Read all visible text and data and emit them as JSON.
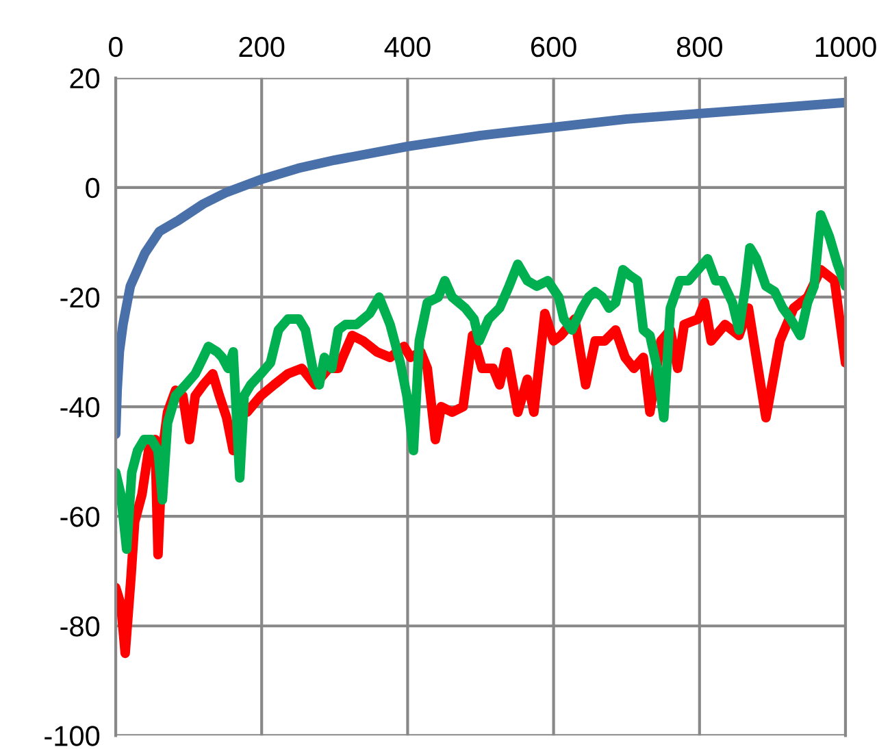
{
  "chart_data": {
    "type": "line",
    "xlim": [
      0,
      1000
    ],
    "xticks": [
      0,
      200,
      400,
      600,
      800,
      1000
    ],
    "ylim": [
      -100,
      20
    ],
    "yticks": [
      -100,
      -80,
      -60,
      -40,
      -20,
      0,
      20
    ],
    "grid": true,
    "marker": "none",
    "line_style": "solid",
    "series": [
      {
        "color": "#4a70aa",
        "x": [
          0,
          2,
          5,
          10,
          20,
          40,
          60,
          86,
          120,
          150,
          200,
          250,
          300,
          400,
          500,
          600,
          700,
          800,
          900,
          1000
        ],
        "values": [
          -45,
          -37,
          -30,
          -25,
          -18,
          -12,
          -8,
          -6,
          -3,
          -1,
          1.5,
          3.5,
          5,
          7.5,
          9.5,
          11,
          12.5,
          13.5,
          14.5,
          15.5
        ]
      },
      {
        "color": "#ff0000",
        "x": [
          0,
          7,
          13,
          21,
          26,
          36,
          45,
          54,
          58,
          64,
          71,
          82,
          92,
          101,
          109,
          120,
          133,
          142,
          152,
          161,
          167,
          180,
          199,
          217,
          236,
          255,
          273,
          292,
          305,
          311,
          324,
          339,
          358,
          376,
          395,
          404,
          418,
          427,
          438,
          446,
          461,
          476,
          489,
          502,
          517,
          526,
          536,
          551,
          564,
          573,
          588,
          600,
          610,
          629,
          644,
          657,
          670,
          685,
          698,
          710,
          723,
          732,
          747,
          760,
          770,
          779,
          798,
          807,
          816,
          835,
          854,
          867,
          891,
          910,
          929,
          948,
          966,
          985,
          996,
          1000
        ],
        "values": [
          -73,
          -76,
          -85,
          -71,
          -61,
          -56,
          -48,
          -46,
          -67,
          -48,
          -41,
          -37,
          -38,
          -46,
          -38,
          -36,
          -34,
          -38,
          -42,
          -48,
          null,
          -41,
          -38,
          -36,
          -34,
          -33,
          -36,
          -33,
          -33,
          -31,
          -27,
          -28,
          -30,
          -31,
          -29,
          -31,
          -30,
          -33,
          -46,
          -40,
          -41,
          -40,
          -27,
          -33,
          -33,
          -36,
          -30,
          -41,
          -35,
          -41,
          -23,
          -28,
          -27,
          -24,
          -36,
          -28,
          -28,
          -26,
          -31,
          -33,
          -31,
          -41,
          -28,
          -26,
          -33,
          -25,
          -24,
          -21,
          -28,
          -25,
          -27,
          -22,
          -42,
          -28,
          -22,
          -20,
          -15,
          -17,
          -28,
          -32
        ]
      },
      {
        "color": "#00b050",
        "x": [
          0,
          7,
          15,
          22,
          30,
          39,
          49,
          58,
          64,
          71,
          82,
          96,
          109,
          120,
          127,
          139,
          146,
          154,
          161,
          170,
          176,
          185,
          199,
          212,
          223,
          236,
          251,
          260,
          270,
          279,
          286,
          296,
          305,
          315,
          330,
          348,
          361,
          376,
          390,
          399,
          408,
          416,
          427,
          442,
          451,
          461,
          479,
          491,
          498,
          511,
          526,
          539,
          551,
          564,
          577,
          592,
          607,
          614,
          625,
          639,
          648,
          657,
          667,
          676,
          685,
          695,
          704,
          715,
          723,
          732,
          742,
          751,
          760,
          773,
          785,
          798,
          811,
          822,
          831,
          845,
          854,
          863,
          869,
          878,
          891,
          903,
          914,
          925,
          938,
          948,
          957,
          966,
          978,
          989,
          1000
        ],
        "values": [
          -52,
          -56,
          -66,
          -52,
          -48,
          -46,
          -46,
          -48,
          -57,
          -43,
          -38,
          -36,
          -34,
          -31,
          -29,
          -30,
          -31,
          -33,
          -30,
          -53,
          -38,
          -36,
          -34,
          -32,
          -26,
          -24,
          -24,
          -26,
          -33,
          -36,
          -31,
          -33,
          -26,
          -25,
          -25,
          -23,
          -20,
          -25,
          -32,
          -38,
          -48,
          -28,
          -21,
          -20,
          -17,
          -20,
          -22,
          -24,
          -28,
          -24,
          -22,
          -18,
          -14,
          -17,
          -18,
          -17,
          -20,
          -24,
          -26,
          -22,
          -20,
          -19,
          -20,
          -22,
          -21,
          -15,
          -16,
          -17,
          -26,
          -27,
          -33,
          -42,
          -22,
          -17,
          -17,
          -15,
          -13,
          -17,
          -17,
          -21,
          -26,
          -18,
          -11,
          -13,
          -18,
          -19,
          -22,
          -24,
          -27,
          -21,
          -18,
          -5,
          -9,
          -14,
          -18
        ]
      }
    ]
  }
}
